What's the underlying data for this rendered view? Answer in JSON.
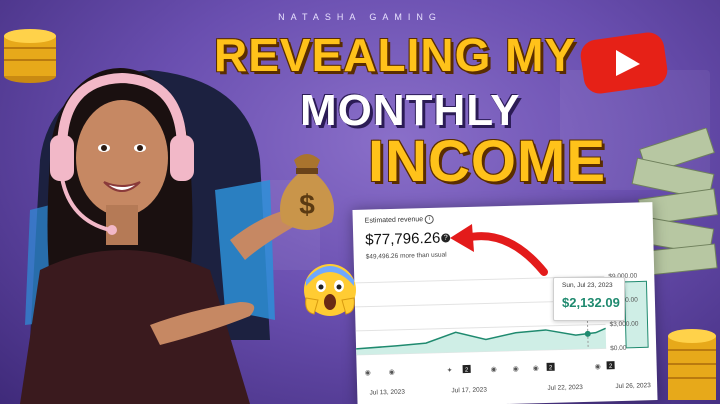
{
  "brand": "NATASHA GAMING",
  "headline": {
    "line1": "REVEALING MY",
    "line2": "MONTHLY",
    "line3": "INCOME"
  },
  "dashboard": {
    "label": "Estimated revenue",
    "info_icon": "info-icon",
    "value": "$77,796.26",
    "help_icon": "help-icon",
    "subtext": "$49,496.26 more than usual",
    "y_axis": [
      "$9,000.00",
      "$6,000.00",
      "$3,000.00",
      "$0.00"
    ],
    "x_axis": [
      "Jul 13, 2023",
      "Jul 17, 2023",
      "Jul 22, 2023",
      "Jul 26, 2023"
    ],
    "tooltip": {
      "date": "Sun, Jul 23, 2023",
      "value": "$2,132.09"
    },
    "badges": [
      "2",
      "2",
      "2"
    ]
  },
  "colors": {
    "background": "#6a4fb0",
    "headline_yellow": "#ffc21a",
    "chart_fill": "#cfeee6",
    "chart_line": "#1f8a6f",
    "youtube_red": "#e62117"
  }
}
